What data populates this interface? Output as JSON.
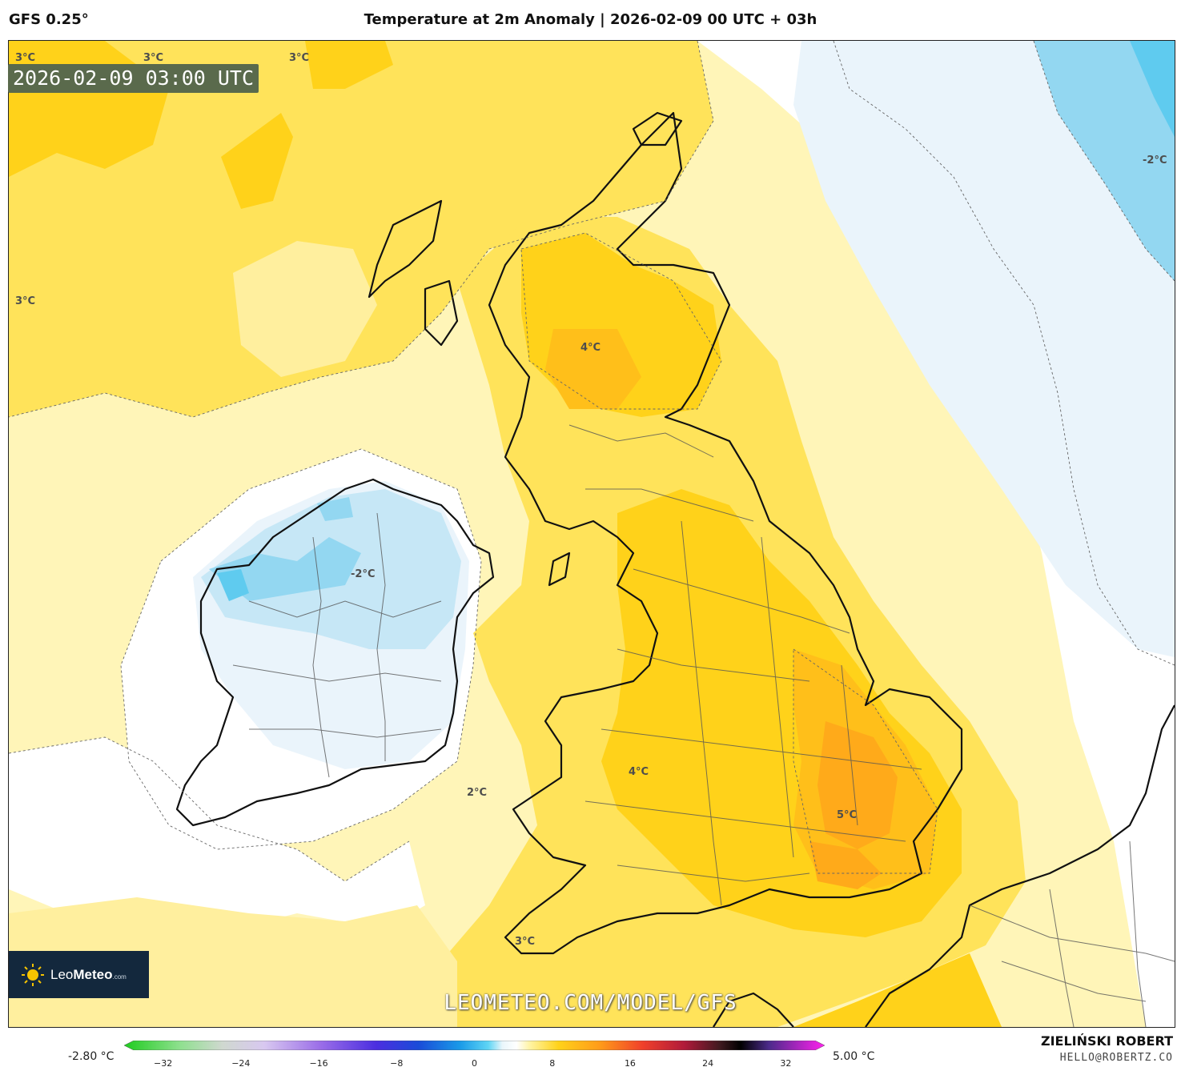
{
  "header": {
    "model": "GFS 0.25°",
    "title": "Temperature at 2m Anomaly | 2026-02-09 00 UTC + 03h"
  },
  "map": {
    "valid_time": "2026-02-09 03:00 UTC",
    "watermark": "LEOMETEO.COM/MODEL/GFS",
    "contour_labels": [
      "3°C",
      "3°C",
      "3°C",
      "3°C",
      "-2°C",
      "4°C",
      "-2°C",
      "4°C",
      "2°C",
      "5°C",
      "3°C"
    ],
    "colors": {
      "anomaly_0_1": "#fff5b8",
      "anomaly_1_2": "#ffef9e",
      "anomaly_2_3": "#ffe35a",
      "anomaly_3_4": "#ffd21a",
      "anomaly_4_5": "#ffbf1a",
      "anomaly_5_plus": "#ffaa1a",
      "anomaly_neg_0_1": "#eaf4fb",
      "anomaly_neg_1_2": "#c6e7f6",
      "anomaly_neg_2_3": "#93d7f1",
      "anomaly_neg_3": "#5fcbef",
      "coastline": "#111111",
      "borders": "#555555"
    }
  },
  "logo": {
    "brand_light": "Leo",
    "brand_bold": "Meteo",
    "suffix": ".com"
  },
  "colorbar": {
    "min_label": "-2.80 °C",
    "max_label": "5.00 °C",
    "ticks": [
      "−32",
      "−24",
      "−16",
      "−8",
      "0",
      "8",
      "16",
      "24",
      "32"
    ],
    "range": [
      -36,
      36
    ]
  },
  "credits": {
    "author": "ZIELIŃSKI ROBERT",
    "email": "HELLO@ROBERTZ.CO"
  }
}
